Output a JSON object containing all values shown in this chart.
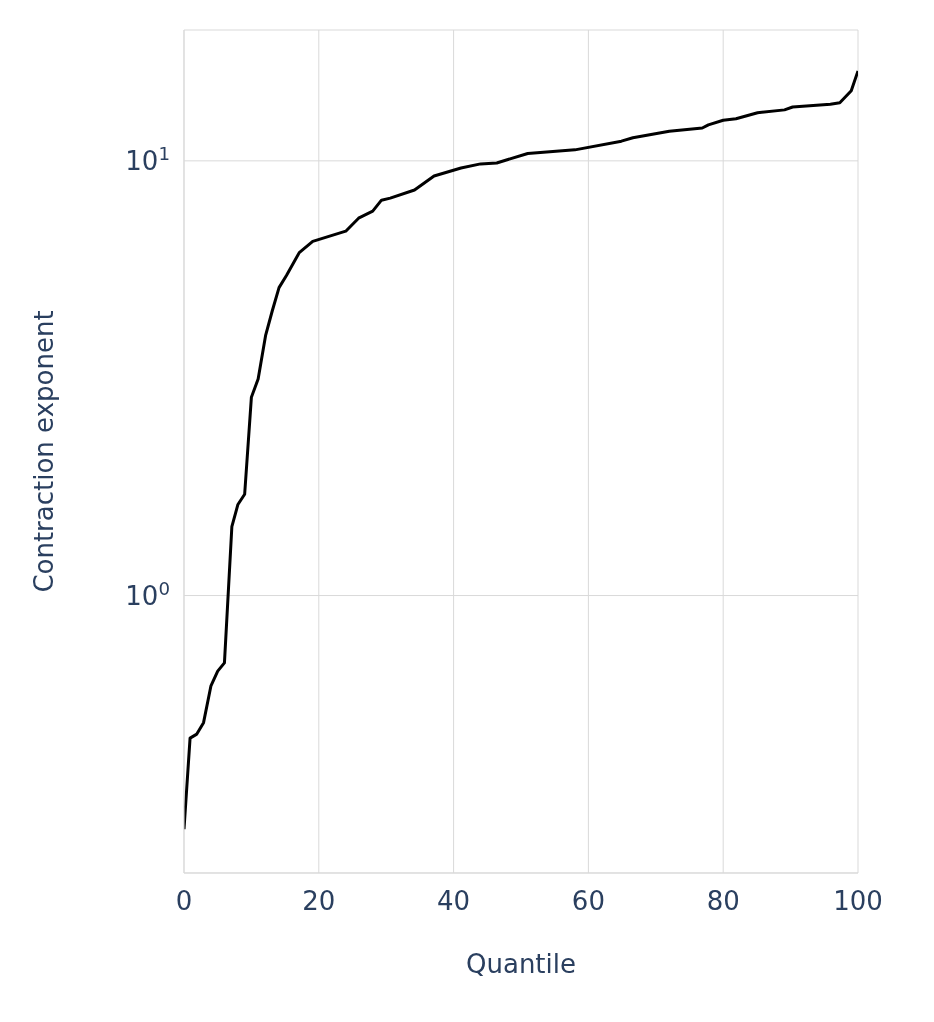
{
  "chart_data": {
    "type": "line",
    "xlabel": "Quantile",
    "ylabel": "Contraction exponent",
    "x": [
      0,
      0.9,
      1.9,
      2.9,
      4.0,
      5.0,
      6.0,
      7.1,
      8.0,
      9.0,
      10.0,
      11.0,
      12.1,
      13.1,
      14.1,
      15.2,
      17.1,
      19.1,
      24.0,
      25.9,
      28.0,
      29.3,
      30.6,
      34.2,
      37.1,
      41.1,
      44.0,
      46.4,
      51.0,
      58.0,
      64.9,
      66.6,
      72.0,
      76.9,
      77.8,
      80.0,
      81.9,
      85.1,
      89.1,
      90.3,
      95.9,
      97.3,
      99.0,
      100
    ],
    "series": [
      {
        "color": "#000000",
        "values": [
          0.29,
          0.47,
          0.48,
          0.51,
          0.62,
          0.67,
          0.7,
          1.44,
          1.62,
          1.71,
          2.86,
          3.15,
          3.96,
          4.52,
          5.11,
          5.45,
          6.15,
          6.53,
          6.89,
          7.38,
          7.66,
          8.12,
          8.21,
          8.57,
          9.23,
          9.63,
          9.84,
          9.89,
          10.4,
          10.6,
          11.1,
          11.3,
          11.7,
          11.9,
          12.1,
          12.4,
          12.5,
          12.9,
          13.1,
          13.3,
          13.5,
          13.6,
          14.5,
          16.1
        ]
      }
    ],
    "xlim": [
      0,
      100
    ],
    "xticks": [
      0,
      20,
      40,
      60,
      80,
      100
    ],
    "ylim": [
      0.23,
      20
    ],
    "yticks": [
      {
        "value": 1,
        "label": "10$^{0}$"
      },
      {
        "value": 10,
        "label": "10$^{1}$"
      }
    ],
    "log": "y",
    "grid": true,
    "marker": "none",
    "line_style": "solid"
  }
}
